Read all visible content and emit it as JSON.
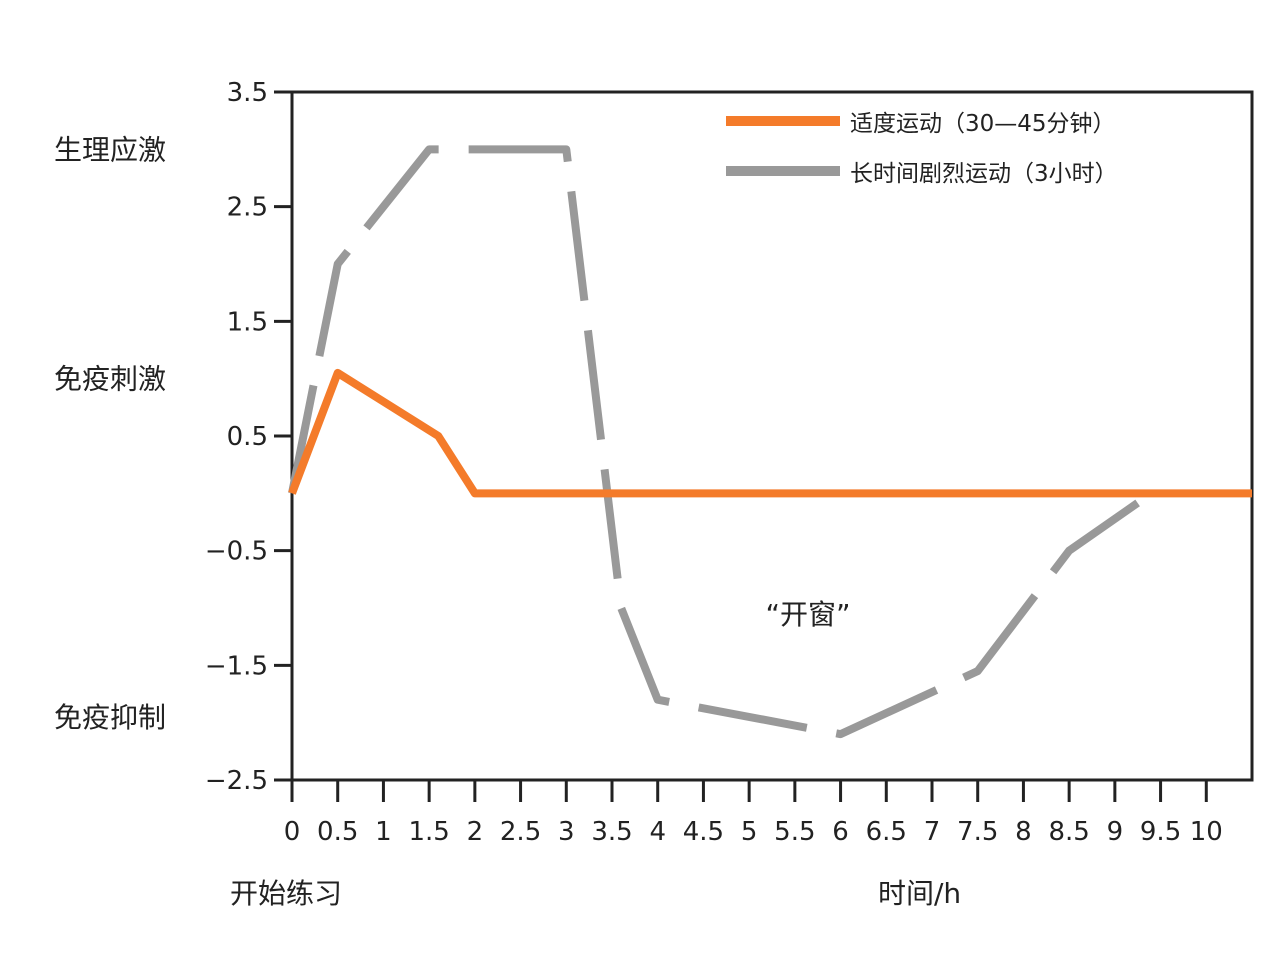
{
  "chart_data": {
    "type": "line",
    "title": "",
    "xlabel": "时间/h",
    "ylabel": "",
    "x_start_label": "开始练习",
    "xlim": [
      0,
      10.5
    ],
    "ylim": [
      -2.5,
      3.5
    ],
    "x_ticks": [
      0,
      0.5,
      1,
      1.5,
      2,
      2.5,
      3,
      3.5,
      4,
      4.5,
      5,
      5.5,
      6,
      6.5,
      7,
      7.5,
      8,
      8.5,
      9,
      9.5,
      10
    ],
    "x_tick_labels": [
      "0",
      "0.5",
      "1",
      "1.5",
      "2",
      "2.5",
      "3",
      "3.5",
      "4",
      "4.5",
      "5",
      "5.5",
      "6",
      "6.5",
      "7",
      "7.5",
      "8",
      "8.5",
      "9",
      "9.5",
      "10"
    ],
    "y_ticks": [
      3.5,
      2.5,
      1.5,
      0.5,
      -0.5,
      -1.5,
      -2.5
    ],
    "y_tick_labels": [
      "3.5",
      "2.5",
      "1.5",
      "0.5",
      "−0.5",
      "−1.5",
      "−2.5"
    ],
    "y_region_labels": [
      {
        "label": "生理应激",
        "y": 3.0
      },
      {
        "label": "免疫刺激",
        "y": 1.0
      },
      {
        "label": "免疫抑制",
        "y": -1.95
      }
    ],
    "legend_position": "top-right",
    "grid": false,
    "series": [
      {
        "name": "适度运动（30—45分钟）",
        "color": "#F47B2A",
        "style": "solid",
        "x": [
          0,
          0.5,
          1.6,
          2.0,
          10.5
        ],
        "y": [
          0,
          1.05,
          0.5,
          0,
          0
        ]
      },
      {
        "name": "长时间剧烈运动（3小时）",
        "color": "#999999",
        "style": "dashed",
        "x": [
          0,
          0.5,
          1.5,
          2.3,
          3.0,
          3.6,
          4.0,
          6.0,
          7.5,
          8.5,
          9.4
        ],
        "y": [
          0,
          2.0,
          3.0,
          3.0,
          3.0,
          -1.0,
          -1.8,
          -2.1,
          -1.55,
          -0.5,
          0
        ]
      }
    ],
    "annotations": [
      {
        "text": "“开窗”",
        "x": 5.5,
        "y": -1.0
      }
    ]
  }
}
